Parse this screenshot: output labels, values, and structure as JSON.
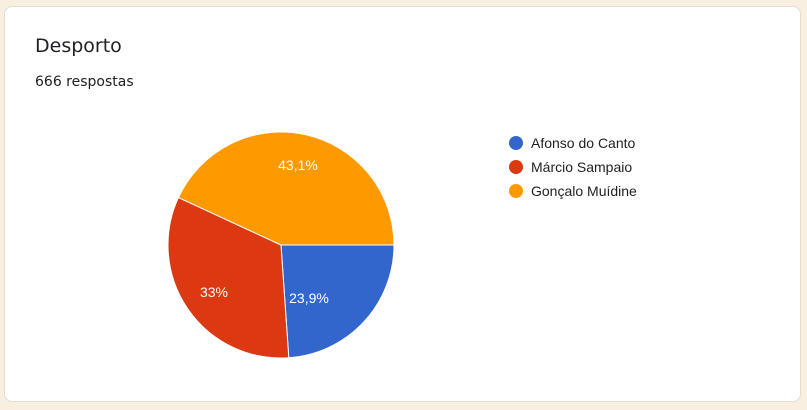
{
  "header": {
    "title": "Desporto",
    "responses": "666 respostas"
  },
  "chart_data": {
    "type": "pie",
    "categories": [
      "Afonso do Canto",
      "Márcio Sampaio",
      "Gonçalo Muídine"
    ],
    "values": [
      23.9,
      33,
      43.1
    ],
    "data_labels": [
      "23,9%",
      "33%",
      "43,1%"
    ],
    "colors": [
      "#3366cc",
      "#dc3912",
      "#ff9900"
    ],
    "legend": "right"
  }
}
